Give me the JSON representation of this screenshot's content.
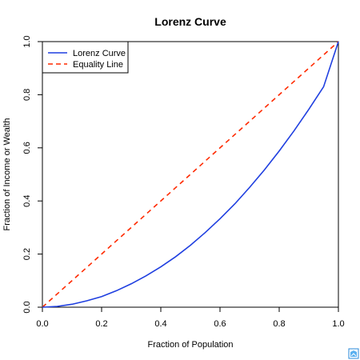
{
  "chart_data": {
    "type": "line",
    "title": "Lorenz Curve",
    "xlabel": "Fraction of Population",
    "ylabel": "Fraction of Income or Wealth",
    "xlim": [
      0,
      1
    ],
    "ylim": [
      0,
      1
    ],
    "x_ticks": [
      0.0,
      0.2,
      0.4,
      0.6,
      0.8,
      1.0
    ],
    "y_ticks": [
      0.0,
      0.2,
      0.4,
      0.6,
      0.8,
      1.0
    ],
    "x_tick_labels": [
      "0.0",
      "0.2",
      "0.4",
      "0.6",
      "0.8",
      "1.0"
    ],
    "y_tick_labels": [
      "0.0",
      "0.2",
      "0.4",
      "0.6",
      "0.8",
      "1.0"
    ],
    "grid": false,
    "legend_position": "top-left",
    "series": [
      {
        "name": "Lorenz Curve",
        "color": "#1f3fe0",
        "style": "solid",
        "x": [
          0.0,
          0.05,
          0.1,
          0.15,
          0.2,
          0.25,
          0.3,
          0.35,
          0.4,
          0.45,
          0.5,
          0.55,
          0.6,
          0.65,
          0.7,
          0.75,
          0.8,
          0.85,
          0.9,
          0.95,
          1.0
        ],
        "y": [
          0.0,
          0.003,
          0.011,
          0.024,
          0.04,
          0.062,
          0.088,
          0.118,
          0.152,
          0.19,
          0.233,
          0.281,
          0.333,
          0.389,
          0.451,
          0.517,
          0.588,
          0.664,
          0.745,
          0.83,
          1.0
        ]
      },
      {
        "name": "Equality Line",
        "color": "#ff2a00",
        "style": "dashed",
        "x": [
          0.0,
          1.0
        ],
        "y": [
          0.0,
          1.0
        ]
      }
    ]
  },
  "watermark_icon": "logo-icon"
}
